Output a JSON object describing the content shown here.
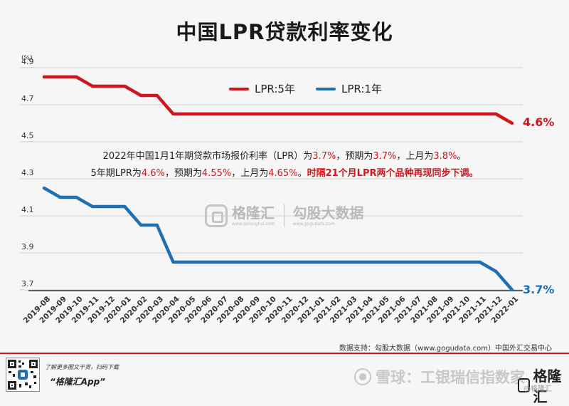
{
  "header": {
    "title": "中国LPR贷款利率变化",
    "unit": "(%)"
  },
  "colors": {
    "lpr5": "#d0161d",
    "lpr1": "#1f6fb3",
    "grid": "#cfcfcf"
  },
  "chart_data": {
    "type": "line",
    "title": "中国LPR贷款利率变化",
    "ylabel": "(%)",
    "ylim": [
      3.7,
      4.9
    ],
    "yticks": [
      3.7,
      3.9,
      4.1,
      4.3,
      4.5,
      4.7,
      4.9
    ],
    "grid": true,
    "legend_position": "top-center",
    "categories": [
      "2019-08",
      "2019-09",
      "2019-10",
      "2019-11",
      "2019-12",
      "2020-01",
      "2020-02",
      "2020-03",
      "2020-04",
      "2020-05",
      "2020-06",
      "2020-07",
      "2020-08",
      "2020-09",
      "2020-10",
      "2020-11",
      "2020-12",
      "2021-01",
      "2021-02",
      "2021-03",
      "2021-04",
      "2021-05",
      "2021-06",
      "2021-07",
      "2021-08",
      "2021-09",
      "2021-10",
      "2021-11",
      "2021-12",
      "2022-01"
    ],
    "series": [
      {
        "name": "LPR:5年",
        "color": "#d0161d",
        "values": [
          4.85,
          4.85,
          4.85,
          4.8,
          4.8,
          4.8,
          4.75,
          4.75,
          4.65,
          4.65,
          4.65,
          4.65,
          4.65,
          4.65,
          4.65,
          4.65,
          4.65,
          4.65,
          4.65,
          4.65,
          4.65,
          4.65,
          4.65,
          4.65,
          4.65,
          4.65,
          4.65,
          4.65,
          4.65,
          4.6
        ],
        "end_label": "4.6%"
      },
      {
        "name": "LPR:1年",
        "color": "#1f6fb3",
        "values": [
          4.25,
          4.2,
          4.2,
          4.15,
          4.15,
          4.15,
          4.05,
          4.05,
          3.85,
          3.85,
          3.85,
          3.85,
          3.85,
          3.85,
          3.85,
          3.85,
          3.85,
          3.85,
          3.85,
          3.85,
          3.85,
          3.85,
          3.85,
          3.85,
          3.85,
          3.85,
          3.85,
          3.85,
          3.8,
          3.7
        ],
        "end_label": "3.7%"
      }
    ],
    "annotation": {
      "line1": [
        "2022年中国1月1年期贷款市场报价利率（LPR）为",
        "3.7%",
        "，预期为",
        "3.7%",
        "，上月为",
        "3.8%",
        "。"
      ],
      "line2": [
        "5年期LPR为",
        "4.6%",
        "，预期为",
        "4.55%",
        "，上月为",
        "4.65%",
        "。",
        "时隔21个月LPR两个品种再现同步下调。"
      ]
    }
  },
  "watermark": {
    "brand": "格隆汇",
    "url": "www.gelonghui.com",
    "brand2": "勾股大数据",
    "url2": "www.gogudata.com"
  },
  "footer": {
    "source": "数据支持：勾股大数据（www.gogudata.com）中国外汇交易中心",
    "small_text": "了解更多图文干货，扫码下载",
    "app": "“格隆汇App”",
    "xueqiu": "雪球：工银瑞信指数家",
    "brand": "格隆汇",
    "brand_sub": "@格隆汇"
  }
}
